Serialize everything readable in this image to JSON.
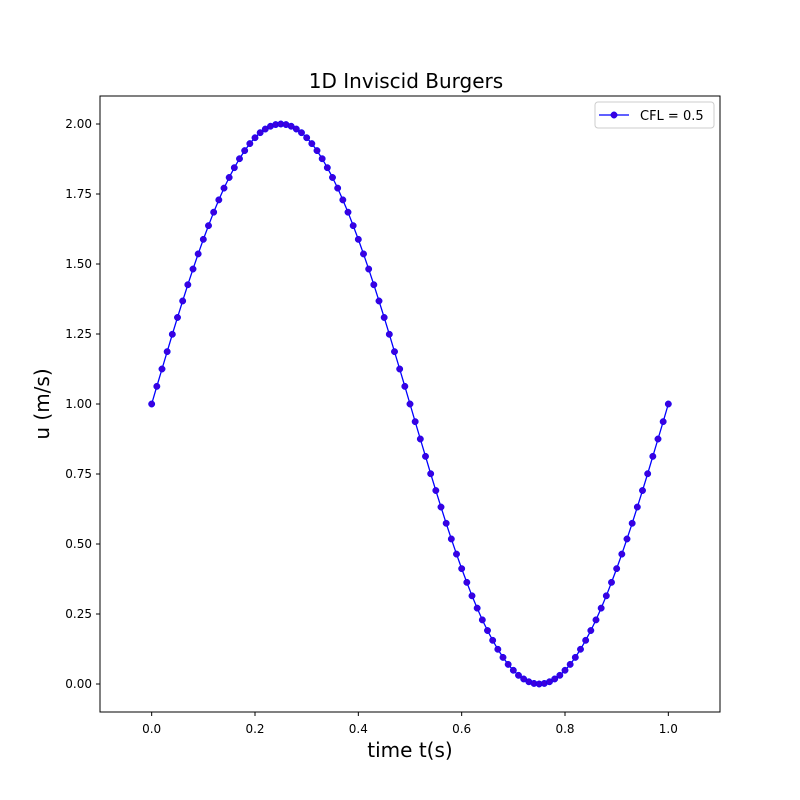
{
  "chart_data": {
    "type": "line",
    "title": "1D Inviscid Burgers",
    "xlabel": "time t(s)",
    "ylabel": "u (m/s)",
    "xlim": [
      -0.1,
      1.1
    ],
    "ylim": [
      -0.1,
      2.1
    ],
    "xticks": [
      0.0,
      0.2,
      0.4,
      0.6,
      0.8,
      1.0
    ],
    "xtick_labels": [
      "0.0",
      "0.2",
      "0.4",
      "0.6",
      "0.8",
      "1.0"
    ],
    "yticks": [
      0.0,
      0.25,
      0.5,
      0.75,
      1.0,
      1.25,
      1.5,
      1.75,
      2.0
    ],
    "ytick_labels": [
      "0.00",
      "0.25",
      "0.50",
      "0.75",
      "1.00",
      "1.25",
      "1.50",
      "1.75",
      "2.00"
    ],
    "grid": false,
    "legend_position": "top-right",
    "series": [
      {
        "name": "CFL = 0.5",
        "color": "#0000ff",
        "marker_color": "#3a00e0",
        "marker": "circle",
        "x": [
          0.0,
          0.01,
          0.02,
          0.03,
          0.04,
          0.05,
          0.06,
          0.07,
          0.08,
          0.09,
          0.1,
          0.11,
          0.12,
          0.13,
          0.14,
          0.15,
          0.16,
          0.17,
          0.18,
          0.19,
          0.2,
          0.21,
          0.22,
          0.23,
          0.24,
          0.25,
          0.26,
          0.27,
          0.28,
          0.29,
          0.3,
          0.31,
          0.32,
          0.33,
          0.34,
          0.35,
          0.36,
          0.37,
          0.38,
          0.39,
          0.4,
          0.41,
          0.42,
          0.43,
          0.44,
          0.45,
          0.46,
          0.47,
          0.48,
          0.49,
          0.5,
          0.51,
          0.52,
          0.53,
          0.54,
          0.55,
          0.56,
          0.57,
          0.58,
          0.59,
          0.6,
          0.61,
          0.62,
          0.63,
          0.64,
          0.65,
          0.66,
          0.67,
          0.68,
          0.69,
          0.7,
          0.71,
          0.72,
          0.73,
          0.74,
          0.75,
          0.76,
          0.77,
          0.78,
          0.79,
          0.8,
          0.81,
          0.82,
          0.83,
          0.84,
          0.85,
          0.86,
          0.87,
          0.88,
          0.89,
          0.9,
          0.91,
          0.92,
          0.93,
          0.94,
          0.95,
          0.96,
          0.97,
          0.98,
          0.99,
          1.0
        ],
        "y": [
          1.0,
          1.063,
          1.125,
          1.187,
          1.249,
          1.309,
          1.368,
          1.426,
          1.482,
          1.536,
          1.588,
          1.637,
          1.685,
          1.729,
          1.771,
          1.809,
          1.844,
          1.876,
          1.905,
          1.93,
          1.951,
          1.969,
          1.982,
          1.992,
          1.998,
          2.0,
          1.998,
          1.992,
          1.982,
          1.969,
          1.951,
          1.93,
          1.905,
          1.876,
          1.844,
          1.809,
          1.771,
          1.729,
          1.685,
          1.637,
          1.588,
          1.536,
          1.482,
          1.426,
          1.368,
          1.309,
          1.249,
          1.187,
          1.125,
          1.063,
          1.0,
          0.937,
          0.875,
          0.813,
          0.751,
          0.691,
          0.632,
          0.574,
          0.518,
          0.464,
          0.412,
          0.363,
          0.315,
          0.271,
          0.229,
          0.191,
          0.156,
          0.124,
          0.095,
          0.07,
          0.049,
          0.031,
          0.018,
          0.008,
          0.002,
          0.0,
          0.002,
          0.008,
          0.018,
          0.031,
          0.049,
          0.07,
          0.095,
          0.124,
          0.156,
          0.191,
          0.229,
          0.271,
          0.315,
          0.363,
          0.412,
          0.464,
          0.518,
          0.574,
          0.632,
          0.691,
          0.751,
          0.813,
          0.875,
          0.937,
          1.0
        ]
      }
    ]
  }
}
